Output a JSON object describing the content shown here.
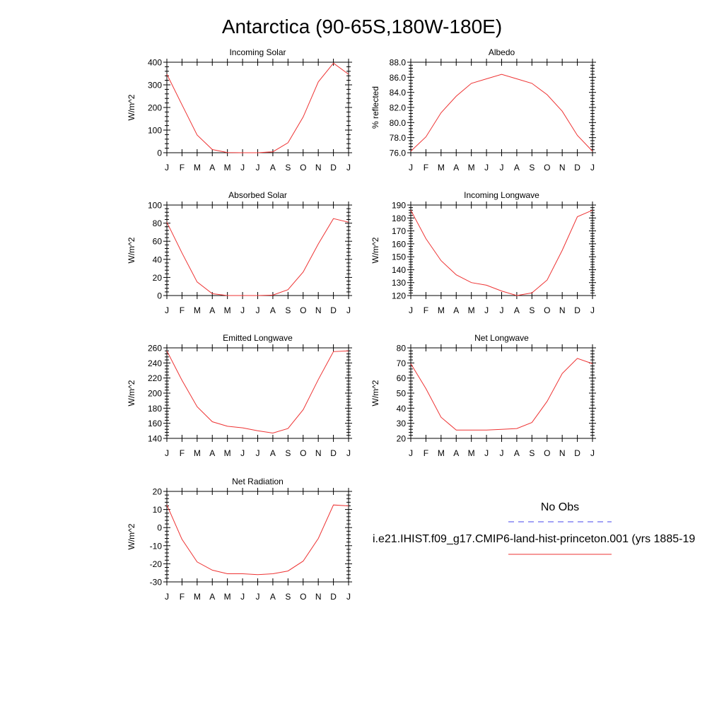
{
  "figure": {
    "title": "Antarctica (90-65S,180W-180E)",
    "legend": {
      "obs_label": "No Obs",
      "obs_color": "#4444ee",
      "model_label": "i.e21.IHIST.f09_g17.CMIP6-land-hist-princeton.001 (yrs 1885-19",
      "model_color": "#ee3333"
    }
  },
  "chart_data": [
    {
      "type": "line",
      "title": "Incoming Solar",
      "ylabel": "W/m^2",
      "categories": [
        "J",
        "F",
        "M",
        "A",
        "M",
        "J",
        "J",
        "A",
        "S",
        "O",
        "N",
        "D",
        "J"
      ],
      "ylim": [
        0,
        400
      ],
      "yticks": [
        0,
        100,
        200,
        300,
        400
      ],
      "ytick_labels": [
        "0",
        "100",
        "200",
        "300",
        "400"
      ],
      "series": [
        {
          "color": "#ee3333",
          "values": [
            347,
            212,
            78,
            14,
            1,
            0,
            0,
            4,
            44,
            158,
            313,
            396,
            347
          ]
        }
      ]
    },
    {
      "type": "line",
      "title": "Albedo",
      "ylabel": "% reflected",
      "categories": [
        "J",
        "F",
        "M",
        "A",
        "M",
        "J",
        "J",
        "A",
        "S",
        "O",
        "N",
        "D",
        "J"
      ],
      "ylim": [
        76,
        88
      ],
      "yticks": [
        76,
        78,
        80,
        82,
        84,
        86,
        88
      ],
      "ytick_labels": [
        "76.0",
        "78.0",
        "80.0",
        "82.0",
        "84.0",
        "86.0",
        "88.0"
      ],
      "series": [
        {
          "color": "#ee3333",
          "values": [
            76.2,
            78.1,
            81.3,
            83.5,
            85.2,
            85.8,
            86.4,
            85.8,
            85.2,
            83.7,
            81.5,
            78.3,
            76.2
          ]
        }
      ]
    },
    {
      "type": "line",
      "title": "Absorbed Solar",
      "ylabel": "W/m^2",
      "categories": [
        "J",
        "F",
        "M",
        "A",
        "M",
        "J",
        "J",
        "A",
        "S",
        "O",
        "N",
        "D",
        "J"
      ],
      "ylim": [
        0,
        100
      ],
      "yticks": [
        0,
        20,
        40,
        60,
        80,
        100
      ],
      "ytick_labels": [
        "0",
        "20",
        "40",
        "60",
        "80",
        "100"
      ],
      "series": [
        {
          "color": "#ee3333",
          "values": [
            81,
            47,
            15,
            2,
            0,
            0,
            0,
            0.5,
            6.5,
            26,
            57,
            85,
            81
          ]
        }
      ]
    },
    {
      "type": "line",
      "title": "Incoming Longwave",
      "ylabel": "W/m^2",
      "categories": [
        "J",
        "F",
        "M",
        "A",
        "M",
        "J",
        "J",
        "A",
        "S",
        "O",
        "N",
        "D",
        "J"
      ],
      "ylim": [
        120,
        190
      ],
      "yticks": [
        120,
        130,
        140,
        150,
        160,
        170,
        180,
        190
      ],
      "ytick_labels": [
        "120",
        "130",
        "140",
        "150",
        "160",
        "170",
        "180",
        "190"
      ],
      "series": [
        {
          "color": "#ee3333",
          "values": [
            186,
            164,
            147,
            136,
            130,
            128,
            123.5,
            120,
            122,
            132,
            155,
            181,
            186
          ]
        }
      ]
    },
    {
      "type": "line",
      "title": "Emitted Longwave",
      "ylabel": "W/m^2",
      "categories": [
        "J",
        "F",
        "M",
        "A",
        "M",
        "J",
        "J",
        "A",
        "S",
        "O",
        "N",
        "D",
        "J"
      ],
      "ylim": [
        140,
        260
      ],
      "yticks": [
        140,
        160,
        180,
        200,
        220,
        240,
        260
      ],
      "ytick_labels": [
        "140",
        "160",
        "180",
        "200",
        "220",
        "240",
        "260"
      ],
      "series": [
        {
          "color": "#ee3333",
          "values": [
            256,
            217,
            182,
            162,
            156,
            154,
            150,
            147,
            153,
            178,
            218,
            255,
            256
          ]
        }
      ]
    },
    {
      "type": "line",
      "title": "Net Longwave",
      "ylabel": "W/m^2",
      "categories": [
        "J",
        "F",
        "M",
        "A",
        "M",
        "J",
        "J",
        "A",
        "S",
        "O",
        "N",
        "D",
        "J"
      ],
      "ylim": [
        20,
        80
      ],
      "yticks": [
        20,
        30,
        40,
        50,
        60,
        70,
        80
      ],
      "ytick_labels": [
        "20",
        "30",
        "40",
        "50",
        "60",
        "70",
        "80"
      ],
      "series": [
        {
          "color": "#ee3333",
          "values": [
            69.5,
            53,
            34,
            25.5,
            25.5,
            25.5,
            26,
            26.5,
            30.5,
            44.5,
            63,
            73,
            69.5
          ]
        }
      ]
    },
    {
      "type": "line",
      "title": "Net Radiation",
      "ylabel": "W/m^2",
      "categories": [
        "J",
        "F",
        "M",
        "A",
        "M",
        "J",
        "J",
        "A",
        "S",
        "O",
        "N",
        "D",
        "J"
      ],
      "ylim": [
        -30,
        20
      ],
      "yticks": [
        -30,
        -20,
        -10,
        0,
        10,
        20
      ],
      "ytick_labels": [
        "-30",
        "-20",
        "-10",
        "0",
        "10",
        "20"
      ],
      "series": [
        {
          "color": "#ee3333",
          "values": [
            12.5,
            -6.5,
            -19,
            -23.5,
            -25.5,
            -25.5,
            -26,
            -25.5,
            -24,
            -18.5,
            -6,
            12.5,
            12
          ]
        }
      ]
    }
  ]
}
